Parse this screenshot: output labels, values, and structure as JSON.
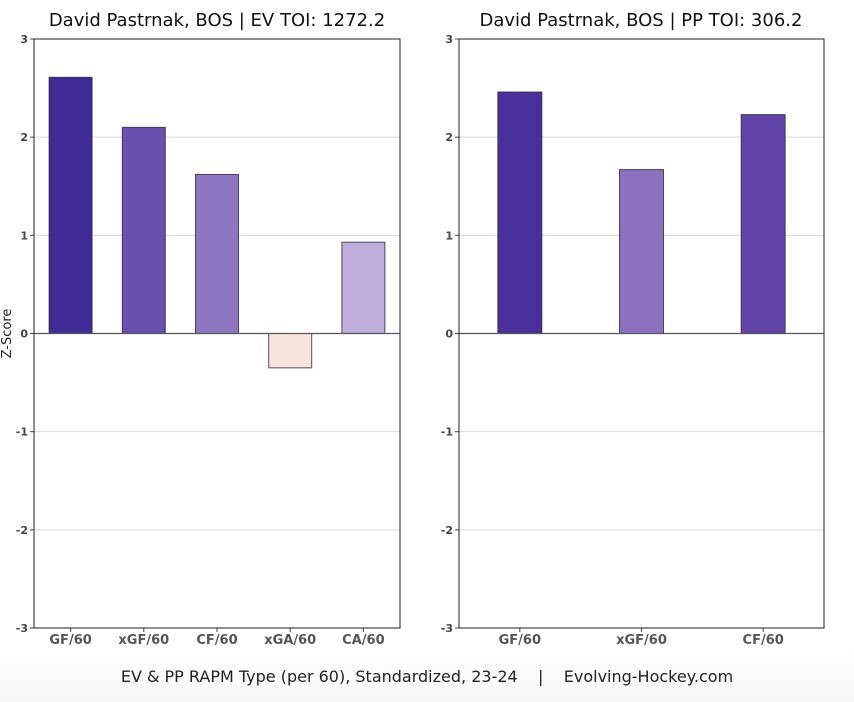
{
  "chart_data": [
    {
      "type": "bar",
      "title": "David Pastrnak, BOS  |  EV TOI: 1272.2",
      "ylabel": "Z-Score",
      "xlabel": "",
      "ylim": [
        -3,
        3
      ],
      "yticks": [
        3,
        2,
        1,
        0,
        -1,
        -2,
        -3
      ],
      "grid": true,
      "categories": [
        "GF/60",
        "xGF/60",
        "CF/60",
        "xGA/60",
        "CA/60"
      ],
      "values": [
        2.61,
        2.1,
        1.62,
        -0.35,
        0.93
      ],
      "colors": [
        "#402c97",
        "#6b4faf",
        "#8f76c2",
        "#f9e4dd",
        "#bfaedc"
      ]
    },
    {
      "type": "bar",
      "title": "David Pastrnak, BOS  |  PP TOI: 306.2",
      "ylabel": "",
      "xlabel": "",
      "ylim": [
        -3,
        3
      ],
      "yticks": [
        3,
        2,
        1,
        0,
        -1,
        -2,
        -3
      ],
      "grid": true,
      "categories": [
        "GF/60",
        "xGF/60",
        "CF/60"
      ],
      "values": [
        2.46,
        1.67,
        2.23
      ],
      "colors": [
        "#4a309c",
        "#8b71bf",
        "#6244a8"
      ]
    }
  ],
  "caption": "EV & PP RAPM Type (per 60), Standardized, 23-24    |    Evolving-Hockey.com"
}
